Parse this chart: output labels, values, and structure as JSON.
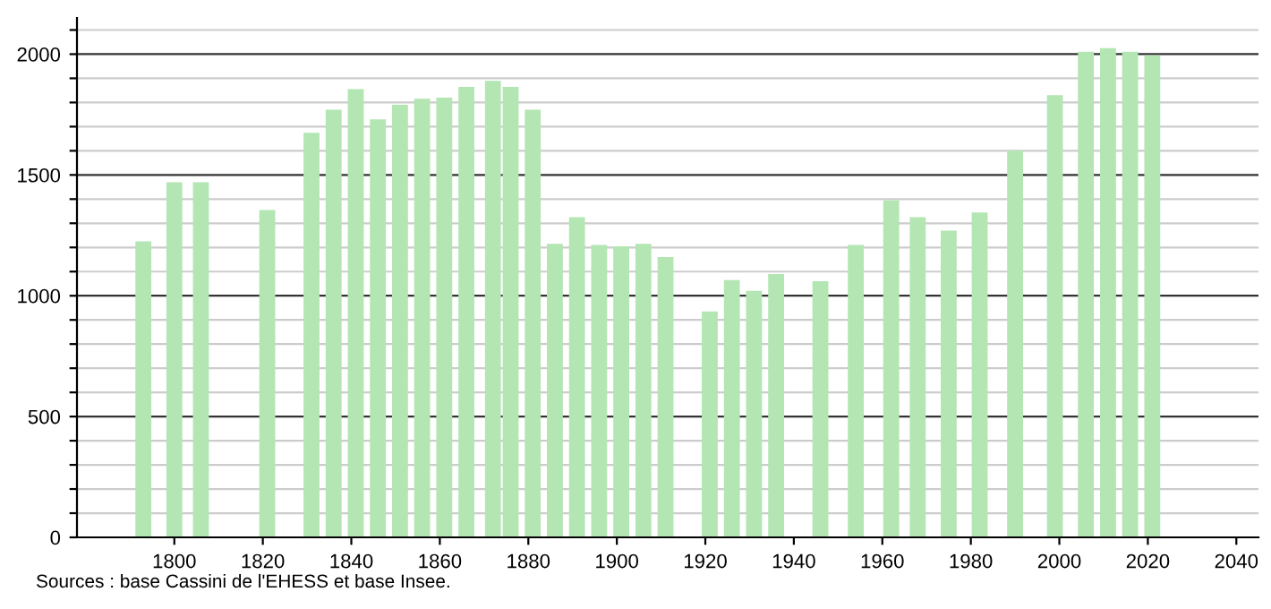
{
  "chart_data": {
    "type": "bar",
    "x": [
      1793,
      1800,
      1806,
      1821,
      1831,
      1836,
      1841,
      1846,
      1851,
      1856,
      1861,
      1866,
      1872,
      1876,
      1881,
      1886,
      1891,
      1896,
      1901,
      1906,
      1911,
      1921,
      1926,
      1931,
      1936,
      1946,
      1954,
      1962,
      1968,
      1975,
      1982,
      1990,
      1999,
      2006,
      2011,
      2016,
      2021
    ],
    "values": [
      1225,
      1470,
      1470,
      1355,
      1675,
      1770,
      1855,
      1730,
      1790,
      1815,
      1820,
      1865,
      1890,
      1865,
      1770,
      1215,
      1325,
      1210,
      1205,
      1215,
      1160,
      935,
      1065,
      1020,
      1090,
      1060,
      1210,
      1395,
      1325,
      1270,
      1345,
      1600,
      1830,
      2010,
      2025,
      2010,
      1995
    ],
    "color": "#b3e6b3",
    "xlim": [
      1778,
      2045
    ],
    "xticks": [
      1800,
      1820,
      1840,
      1860,
      1880,
      1900,
      1920,
      1940,
      1960,
      1980,
      2000,
      2020,
      2040
    ],
    "ylim": [
      0,
      2150
    ],
    "yticks": [
      0,
      {
        "value": 100,
        "label": null
      },
      {
        "value": 200,
        "label": null
      },
      {
        "value": 300,
        "label": null
      },
      {
        "value": 400,
        "label": null
      },
      500,
      {
        "value": 600,
        "label": null
      },
      {
        "value": 700,
        "label": null
      },
      {
        "value": 800,
        "label": null
      },
      {
        "value": 900,
        "label": null
      },
      1000,
      {
        "value": 1100,
        "label": null
      },
      {
        "value": 1200,
        "label": null
      },
      {
        "value": 1300,
        "label": null
      },
      {
        "value": 1400,
        "label": null
      },
      1500,
      {
        "value": 1600,
        "label": null
      },
      {
        "value": 1700,
        "label": null
      },
      {
        "value": 1800,
        "label": null
      },
      {
        "value": 1900,
        "label": null
      },
      2000,
      {
        "value": 2100,
        "label": null
      }
    ],
    "grid": "y",
    "annotations": [
      "Sources : base Cassini de l'EHESS et base Insee."
    ]
  }
}
